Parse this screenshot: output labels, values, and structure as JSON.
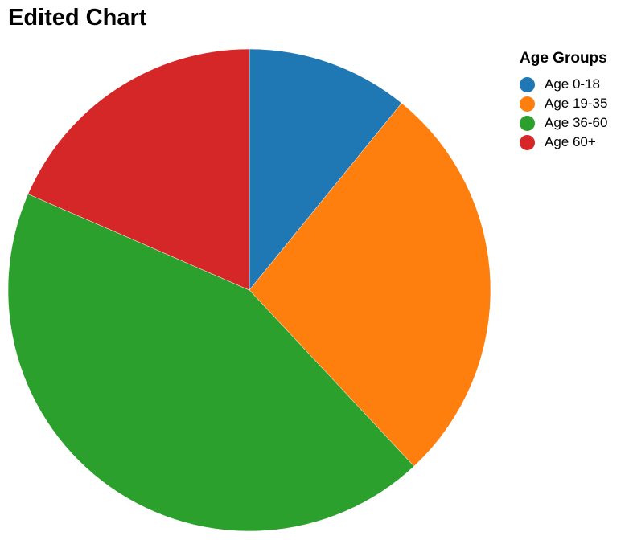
{
  "chart_data": {
    "type": "pie",
    "title": "Edited Chart",
    "legend_title": "Age Groups",
    "legend_position": "top-right",
    "categories": [
      "Age 0-18",
      "Age 19-35",
      "Age 36-60",
      "Age 60+"
    ],
    "values": [
      10,
      25,
      40,
      17
    ],
    "colors": [
      "#1f77b4",
      "#ff7f0e",
      "#2ca02c",
      "#d62728"
    ],
    "start_angle": "12 o'clock",
    "direction": "clockwise"
  }
}
